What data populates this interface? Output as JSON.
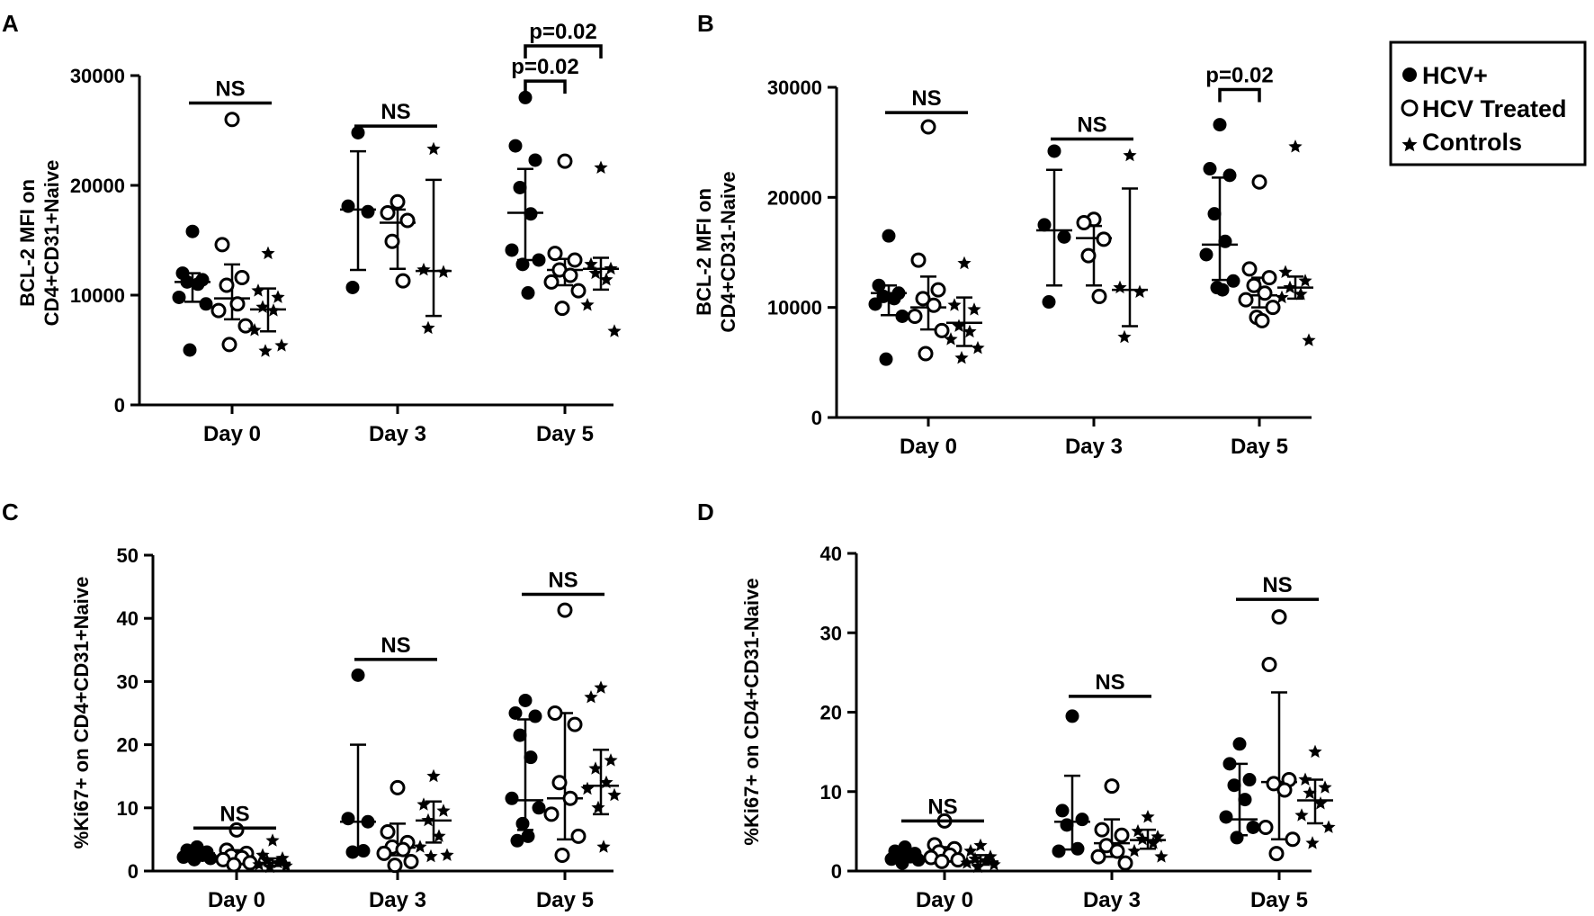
{
  "legend": {
    "items": [
      {
        "label": "HCV+",
        "marker": "filled-circle"
      },
      {
        "label": "HCV Treated",
        "marker": "open-circle"
      },
      {
        "label": "Controls",
        "marker": "star"
      }
    ]
  },
  "colors": {
    "ink": "#000000",
    "background": "#ffffff"
  },
  "chart_data": [
    {
      "panel": "A",
      "type": "scatter",
      "ylabel": [
        "BCL-2 MFI on",
        "CD4+CD31+Naive"
      ],
      "categories": [
        "Day 0",
        "Day 3",
        "Day 5"
      ],
      "ylim": [
        0,
        30000
      ],
      "yticks": [
        0,
        10000,
        20000,
        30000
      ],
      "series": [
        {
          "name": "HCV+",
          "marker": "filled-circle",
          "groups": [
            {
              "points": [
                15800,
                12000,
                11400,
                11200,
                11000,
                9800,
                9200,
                5000
              ],
              "median": 11200,
              "err": [
                9400,
                12000
              ]
            },
            {
              "points": [
                24800,
                18100,
                17600,
                10700
              ],
              "median": 17800,
              "err": [
                12300,
                23100
              ]
            },
            {
              "points": [
                28000,
                23600,
                22300,
                19800,
                17400,
                14100,
                13200,
                12800,
                10200
              ],
              "median": 17500,
              "err": [
                13200,
                21500
              ]
            }
          ]
        },
        {
          "name": "HCV Treated",
          "marker": "open-circle",
          "groups": [
            {
              "points": [
                26000,
                14600,
                11600,
                10900,
                9200,
                8600,
                7200,
                5500
              ],
              "median": 9700,
              "err": [
                7800,
                12800
              ]
            },
            {
              "points": [
                18500,
                17500,
                16800,
                14900,
                11300
              ],
              "median": 16600,
              "err": [
                12400,
                17800
              ]
            },
            {
              "points": [
                22200,
                13800,
                13200,
                12300,
                11800,
                11200,
                10400,
                8800
              ],
              "median": 12300,
              "err": [
                10900,
                13300
              ]
            }
          ]
        },
        {
          "name": "Controls",
          "marker": "star",
          "groups": [
            {
              "points": [
                13800,
                10400,
                9800,
                8900,
                8600,
                6800,
                5400,
                4900
              ],
              "median": 8700,
              "err": [
                6700,
                10600
              ]
            },
            {
              "points": [
                23300,
                12300,
                12100,
                7000
              ],
              "median": 12200,
              "err": [
                8100,
                20500
              ]
            },
            {
              "points": [
                21600,
                12800,
                12400,
                12000,
                11400,
                9100,
                6700
              ],
              "median": 12400,
              "err": [
                10500,
                13400
              ]
            }
          ]
        }
      ],
      "annotations": [
        {
          "text": "NS",
          "type": "bar",
          "group": 0,
          "from": 0,
          "to": 2,
          "y": 27500
        },
        {
          "text": "NS",
          "type": "bar",
          "group": 1,
          "from": 0,
          "to": 2,
          "y": 25400
        },
        {
          "text": "p=0.02",
          "type": "bracket",
          "group": 2,
          "from": 0,
          "to": 1,
          "y": 29500
        },
        {
          "text": "p=0.02",
          "type": "bracket",
          "group": 2,
          "from": 0,
          "to": 2,
          "y": 32700
        }
      ]
    },
    {
      "panel": "B",
      "type": "scatter",
      "ylabel": [
        "BCL-2 MFI on",
        "CD4+CD31-Naive"
      ],
      "categories": [
        "Day 0",
        "Day 3",
        "Day 5"
      ],
      "ylim": [
        0,
        30000
      ],
      "yticks": [
        0,
        10000,
        20000,
        30000
      ],
      "series": [
        {
          "name": "HCV+",
          "marker": "filled-circle",
          "groups": [
            {
              "points": [
                16500,
                12000,
                11300,
                11000,
                10800,
                10300,
                9200,
                5300
              ],
              "median": 11300,
              "err": [
                9300,
                12000
              ]
            },
            {
              "points": [
                24200,
                17500,
                16400,
                10500
              ],
              "median": 17000,
              "err": [
                12000,
                22500
              ]
            },
            {
              "points": [
                26600,
                22600,
                22000,
                18500,
                16000,
                14800,
                12400,
                11800,
                11600
              ],
              "median": 15700,
              "err": [
                12500,
                21800
              ]
            }
          ]
        },
        {
          "name": "HCV Treated",
          "marker": "open-circle",
          "groups": [
            {
              "points": [
                26400,
                14300,
                11600,
                10800,
                10200,
                9200,
                7900,
                5800
              ],
              "median": 10000,
              "err": [
                8000,
                12800
              ]
            },
            {
              "points": [
                18000,
                17700,
                16200,
                14700,
                11000
              ],
              "median": 16300,
              "err": [
                12000,
                17400
              ]
            },
            {
              "points": [
                21400,
                13500,
                12700,
                12000,
                11300,
                10700,
                10000,
                9100,
                8800
              ],
              "median": 11100,
              "err": [
                10000,
                12700
              ]
            }
          ]
        },
        {
          "name": "Controls",
          "marker": "star",
          "groups": [
            {
              "points": [
                14000,
                10200,
                9800,
                8300,
                7800,
                7100,
                6300,
                5400
              ],
              "median": 8600,
              "err": [
                6500,
                10900
              ]
            },
            {
              "points": [
                23800,
                11800,
                11400,
                7300
              ],
              "median": 11600,
              "err": [
                8300,
                20800
              ]
            },
            {
              "points": [
                24600,
                13200,
                12400,
                11800,
                11200,
                10900,
                7000
              ],
              "median": 11800,
              "err": [
                10800,
                12800
              ]
            }
          ]
        }
      ],
      "annotations": [
        {
          "text": "NS",
          "type": "bar",
          "group": 0,
          "from": 0,
          "to": 2,
          "y": 27700
        },
        {
          "text": "NS",
          "type": "bar",
          "group": 1,
          "from": 0,
          "to": 2,
          "y": 25300
        },
        {
          "text": "p=0.02",
          "type": "bracket",
          "group": 2,
          "from": 0,
          "to": 1,
          "y": 29800
        }
      ]
    },
    {
      "panel": "C",
      "type": "scatter",
      "ylabel": [
        "%Ki67+ on CD4+CD31+Naive"
      ],
      "categories": [
        "Day 0",
        "Day 3",
        "Day 5"
      ],
      "ylim": [
        0,
        50
      ],
      "yticks": [
        0,
        10,
        20,
        30,
        40,
        50
      ],
      "series": [
        {
          "name": "HCV+",
          "marker": "filled-circle",
          "groups": [
            {
              "points": [
                3.8,
                3.3,
                3.0,
                2.8,
                2.5,
                2.2,
                2.0,
                1.8
              ],
              "median": 2.8,
              "err": [
                2.2,
                3.4
              ]
            },
            {
              "points": [
                31,
                8.3,
                7.8,
                3.0,
                3.2
              ],
              "median": 7.8,
              "err": [
                3.0,
                20.0
              ]
            },
            {
              "points": [
                27,
                25,
                24.5,
                21.5,
                18.0,
                11.5,
                10.0,
                7.5,
                5.5,
                4.8
              ],
              "median": 11.2,
              "err": [
                6.5,
                24.0
              ]
            }
          ]
        },
        {
          "name": "HCV Treated",
          "marker": "open-circle",
          "groups": [
            {
              "points": [
                6.5,
                3.3,
                2.8,
                2.4,
                2.1,
                1.8,
                1.3,
                1.0
              ],
              "median": 2.2,
              "err": [
                1.3,
                3.3
              ]
            },
            {
              "points": [
                13.2,
                6.2,
                4.5,
                3.8,
                3.4,
                2.8,
                1.5,
                0.9
              ],
              "median": 3.7,
              "err": [
                2.5,
                7.5
              ]
            },
            {
              "points": [
                41.3,
                25,
                23.2,
                14.0,
                11.5,
                9.0,
                5.5,
                2.5
              ],
              "median": 11.5,
              "err": [
                5.0,
                25.0
              ]
            }
          ]
        },
        {
          "name": "Controls",
          "marker": "star",
          "groups": [
            {
              "points": [
                4.8,
                2.5,
                2.0,
                1.6,
                1.3,
                1.0,
                0.8,
                0.6
              ],
              "median": 1.3,
              "err": [
                0.8,
                2.0
              ]
            },
            {
              "points": [
                15.0,
                10.5,
                9.5,
                8.0,
                5.5,
                3.8,
                2.5,
                2.3
              ],
              "median": 8.0,
              "err": [
                4.5,
                11.0
              ]
            },
            {
              "points": [
                29,
                27.5,
                17.5,
                16.2,
                14.0,
                13.0,
                12.0,
                10.0,
                3.8
              ],
              "median": 13.5,
              "err": [
                9.0,
                19.2
              ]
            }
          ]
        }
      ],
      "annotations": [
        {
          "text": "NS",
          "type": "bar",
          "group": 0,
          "from": 0,
          "to": 2,
          "y": 6.8
        },
        {
          "text": "NS",
          "type": "bar",
          "group": 1,
          "from": 0,
          "to": 2,
          "y": 33.5
        },
        {
          "text": "NS",
          "type": "bar",
          "group": 2,
          "from": 0,
          "to": 2,
          "y": 43.8
        }
      ]
    },
    {
      "panel": "D",
      "type": "scatter",
      "ylabel": [
        "%Ki67+ on CD4+CD31-Naive"
      ],
      "categories": [
        "Day 0",
        "Day 3",
        "Day 5"
      ],
      "ylim": [
        0,
        40
      ],
      "yticks": [
        0,
        10,
        20,
        30,
        40
      ],
      "series": [
        {
          "name": "HCV+",
          "marker": "filled-circle",
          "groups": [
            {
              "points": [
                3.0,
                2.5,
                2.2,
                2.0,
                1.8,
                1.5,
                1.4,
                1.0
              ],
              "median": 1.6,
              "err": [
                1.2,
                2.5
              ]
            },
            {
              "points": [
                19.5,
                7.6,
                6.5,
                5.8,
                2.8,
                2.5
              ],
              "median": 6.2,
              "err": [
                2.7,
                12.0
              ]
            },
            {
              "points": [
                16,
                13.5,
                11.5,
                10.8,
                9.0,
                6.8,
                5.5,
                4.2
              ],
              "median": 6.5,
              "err": [
                4.5,
                13.5
              ]
            }
          ]
        },
        {
          "name": "HCV Treated",
          "marker": "open-circle",
          "groups": [
            {
              "points": [
                6.3,
                3.3,
                2.8,
                2.4,
                2.0,
                1.7,
                1.4,
                1.2
              ],
              "median": 1.8,
              "err": [
                1.3,
                3.0
              ]
            },
            {
              "points": [
                10.7,
                5.2,
                4.5,
                3.2,
                2.5,
                1.8,
                1.0
              ],
              "median": 3.5,
              "err": [
                1.8,
                6.5
              ]
            },
            {
              "points": [
                32,
                26,
                11.5,
                11.0,
                10.2,
                5.5,
                4.0,
                2.2
              ],
              "median": 11.2,
              "err": [
                4.0,
                22.5
              ]
            }
          ]
        },
        {
          "name": "Controls",
          "marker": "star",
          "groups": [
            {
              "points": [
                3.2,
                2.5,
                1.8,
                1.5,
                1.3,
                1.0,
                0.8,
                0.5
              ],
              "median": 1.2,
              "err": [
                0.8,
                2.0
              ]
            },
            {
              "points": [
                6.8,
                5.0,
                4.3,
                4.0,
                3.5,
                2.5,
                1.8
              ],
              "median": 3.9,
              "err": [
                2.8,
                5.2
              ]
            },
            {
              "points": [
                15.0,
                11.5,
                10.5,
                9.8,
                8.5,
                7.0,
                5.5,
                3.5
              ],
              "median": 8.9,
              "err": [
                6.0,
                11.5
              ]
            }
          ]
        }
      ],
      "annotations": [
        {
          "text": "NS",
          "type": "bar",
          "group": 0,
          "from": 0,
          "to": 2,
          "y": 6.3
        },
        {
          "text": "NS",
          "type": "bar",
          "group": 1,
          "from": 0,
          "to": 2,
          "y": 22
        },
        {
          "text": "NS",
          "type": "bar",
          "group": 2,
          "from": 0,
          "to": 2,
          "y": 34.2
        }
      ]
    }
  ]
}
